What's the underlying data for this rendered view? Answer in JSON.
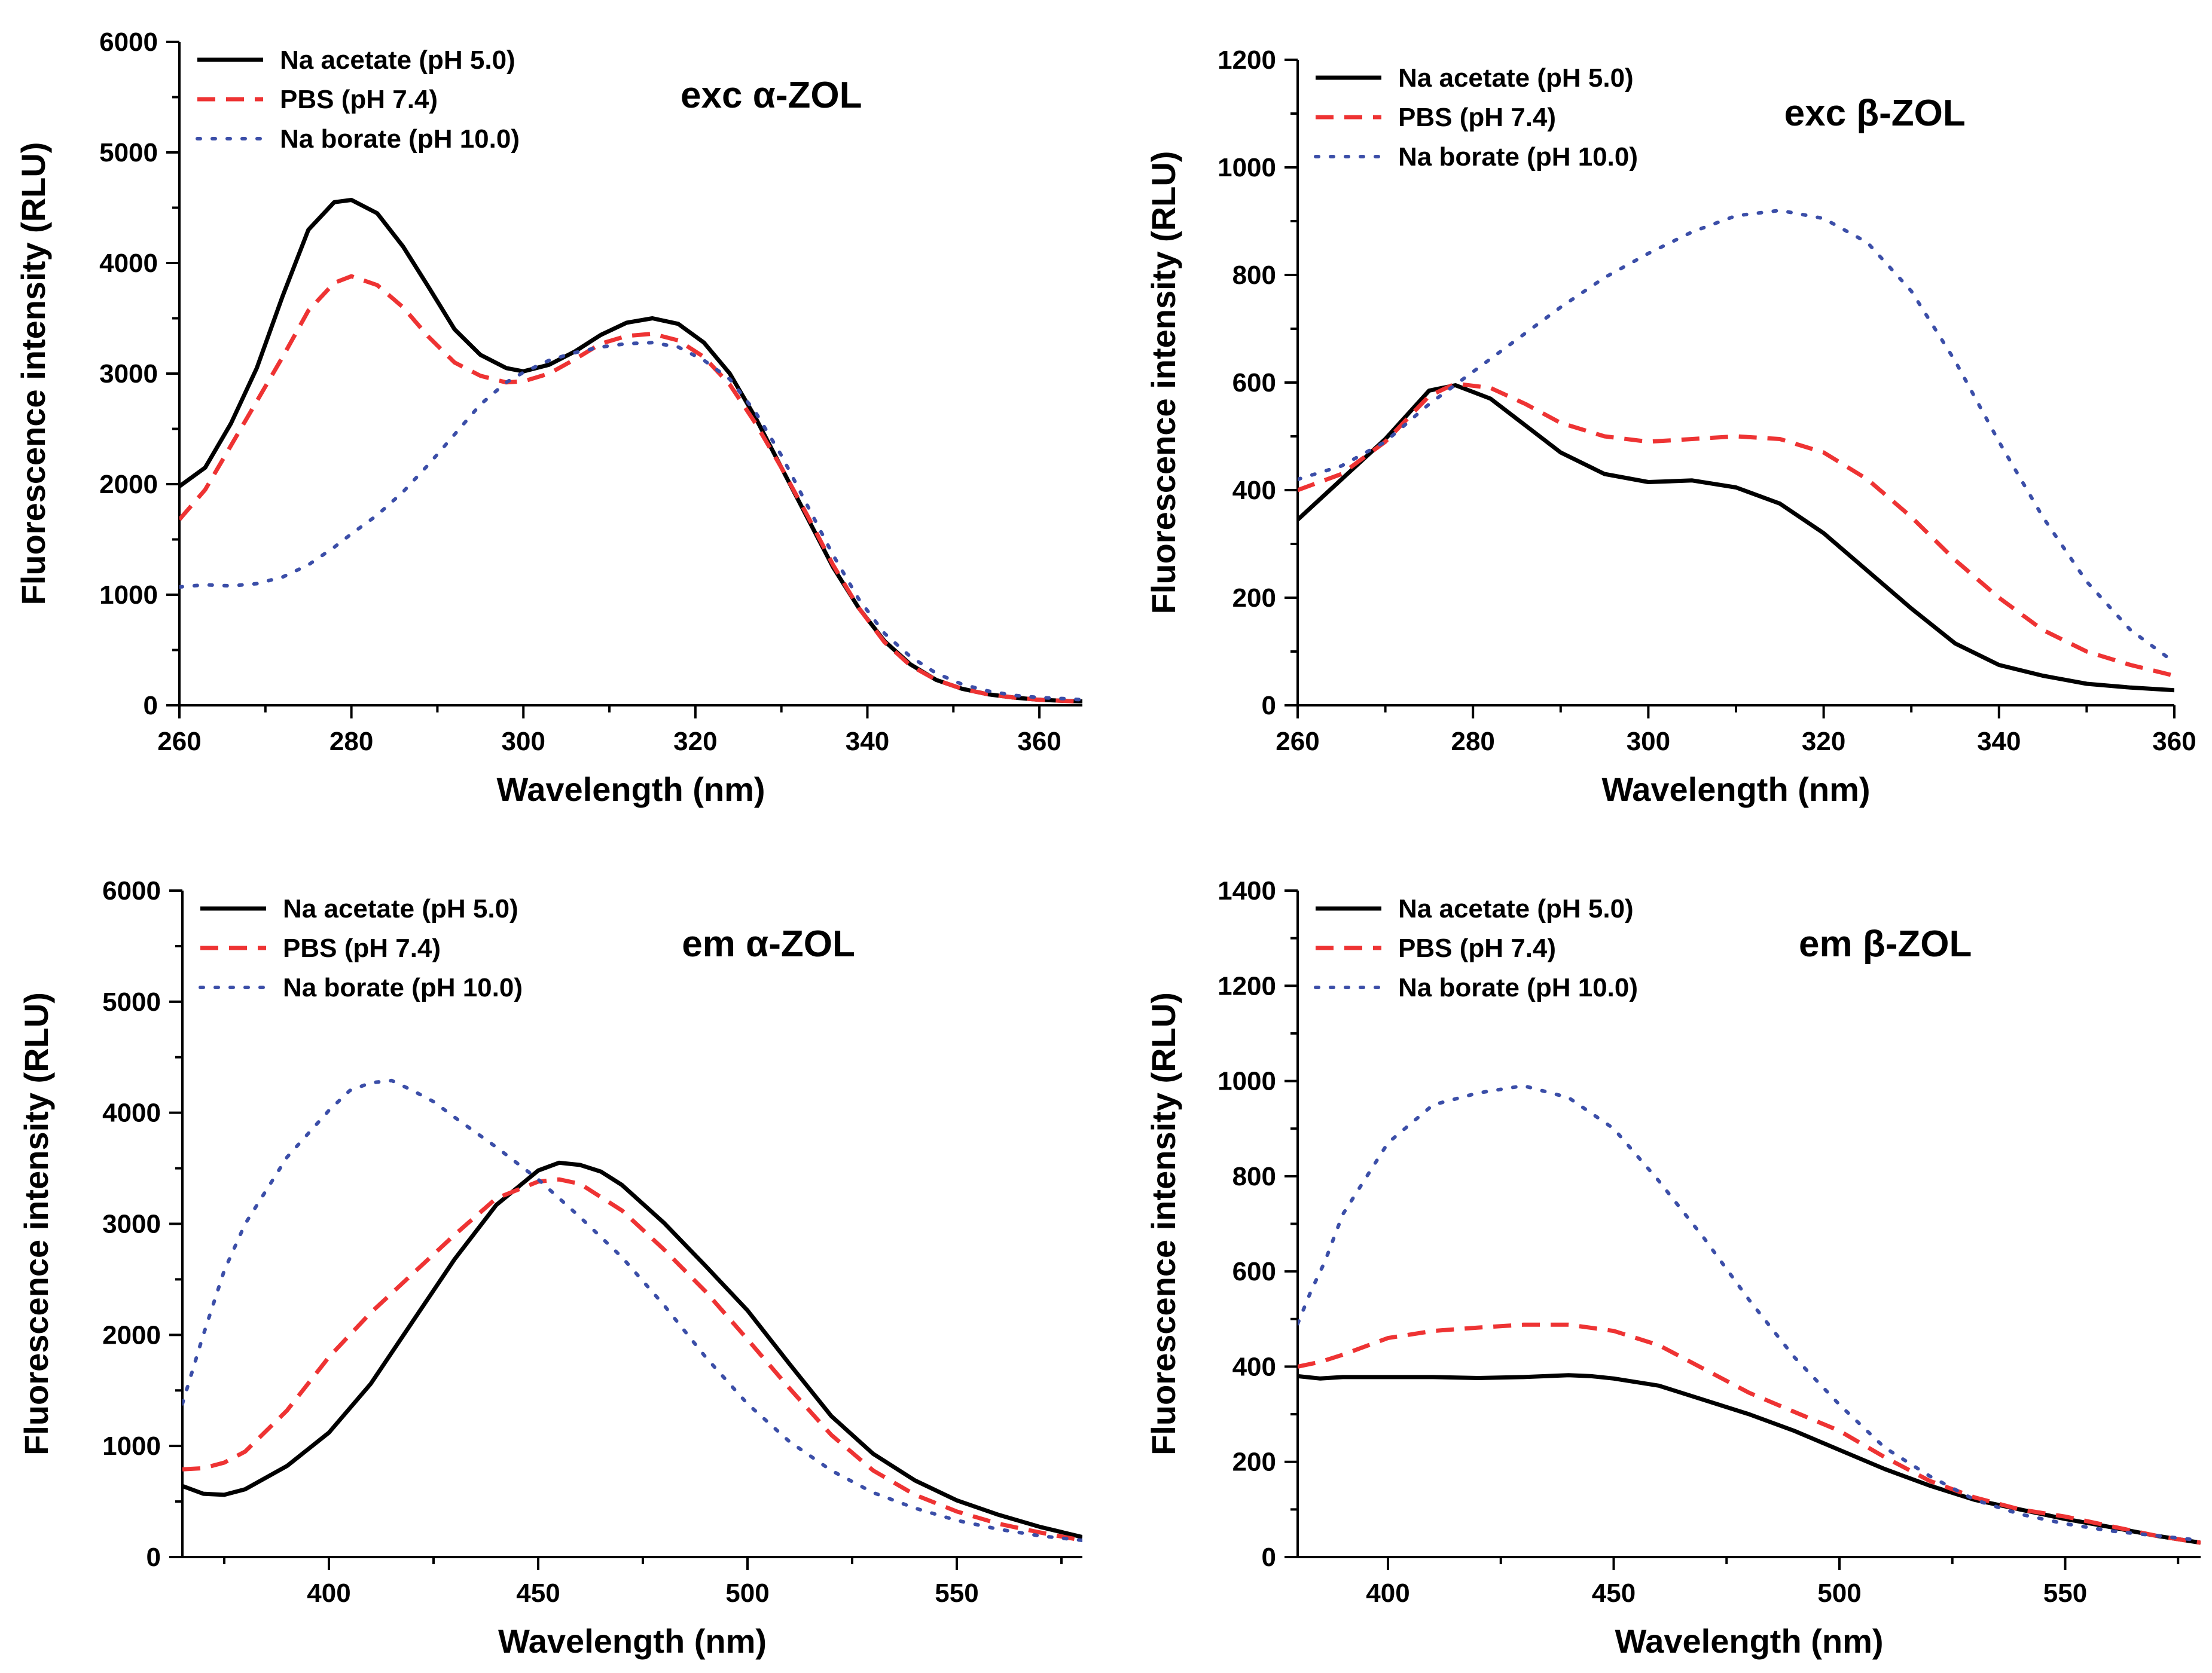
{
  "chart_data": [
    {
      "type": "line",
      "title": "exc α-ZOL",
      "xlabel": "Wavelength (nm)",
      "ylabel": "Fluorescence intensity (RLU)",
      "xlim": [
        260,
        365
      ],
      "ylim": [
        0,
        6000
      ],
      "xticks": [
        260,
        280,
        300,
        320,
        340,
        360
      ],
      "yticks": [
        0,
        1000,
        2000,
        3000,
        4000,
        5000,
        6000
      ],
      "legend_position": "top-left",
      "series": [
        {
          "name": "Na acetate (pH 5.0)",
          "color": "#000000",
          "style": "solid",
          "x": [
            260,
            263,
            266,
            269,
            272,
            275,
            278,
            280,
            283,
            286,
            289,
            292,
            295,
            298,
            300,
            303,
            306,
            309,
            312,
            315,
            318,
            321,
            324,
            327,
            330,
            333,
            336,
            339,
            342,
            345,
            348,
            351,
            354,
            357,
            360,
            363,
            365
          ],
          "y": [
            1980,
            2150,
            2550,
            3050,
            3700,
            4300,
            4550,
            4570,
            4450,
            4150,
            3780,
            3400,
            3170,
            3050,
            3020,
            3080,
            3200,
            3350,
            3460,
            3500,
            3450,
            3280,
            3000,
            2600,
            2150,
            1700,
            1250,
            880,
            580,
            370,
            230,
            150,
            100,
            70,
            50,
            40,
            35
          ]
        },
        {
          "name": "PBS (pH 7.4)",
          "color": "#ee3333",
          "style": "dashed",
          "x": [
            260,
            263,
            266,
            269,
            272,
            275,
            278,
            280,
            283,
            286,
            289,
            292,
            295,
            298,
            300,
            303,
            306,
            309,
            312,
            315,
            318,
            321,
            324,
            327,
            330,
            333,
            336,
            339,
            342,
            345,
            348,
            351,
            354,
            357,
            360,
            363,
            365
          ],
          "y": [
            1680,
            1950,
            2350,
            2750,
            3150,
            3570,
            3820,
            3880,
            3800,
            3600,
            3330,
            3100,
            2980,
            2920,
            2930,
            3000,
            3130,
            3270,
            3340,
            3360,
            3300,
            3150,
            2900,
            2550,
            2150,
            1720,
            1270,
            880,
            570,
            360,
            230,
            150,
            100,
            70,
            50,
            40,
            30
          ]
        },
        {
          "name": "Na borate (pH 10.0)",
          "color": "#3b4ea8",
          "style": "dotted",
          "x": [
            260,
            263,
            266,
            269,
            272,
            275,
            278,
            280,
            283,
            286,
            289,
            292,
            295,
            298,
            300,
            303,
            306,
            309,
            312,
            315,
            318,
            321,
            324,
            327,
            330,
            333,
            336,
            339,
            342,
            345,
            348,
            351,
            354,
            357,
            360,
            363,
            365
          ],
          "y": [
            1070,
            1090,
            1080,
            1100,
            1160,
            1270,
            1430,
            1550,
            1720,
            1930,
            2180,
            2450,
            2720,
            2920,
            3010,
            3120,
            3190,
            3240,
            3270,
            3280,
            3240,
            3120,
            2950,
            2650,
            2260,
            1810,
            1360,
            960,
            650,
            440,
            290,
            190,
            130,
            90,
            70,
            60,
            50
          ]
        }
      ]
    },
    {
      "type": "line",
      "title": "exc β-ZOL",
      "xlabel": "Wavelength (nm)",
      "ylabel": "Fluorescence intensity (RLU)",
      "xlim": [
        260,
        360
      ],
      "ylim": [
        0,
        1200
      ],
      "xticks": [
        260,
        280,
        300,
        320,
        340,
        360
      ],
      "yticks": [
        0,
        200,
        400,
        600,
        800,
        1000,
        1200
      ],
      "legend_position": "top-left",
      "series": [
        {
          "name": "Na acetate (pH 5.0)",
          "color": "#000000",
          "style": "solid",
          "x": [
            260,
            265,
            270,
            275,
            278,
            282,
            286,
            290,
            295,
            300,
            305,
            310,
            315,
            320,
            325,
            330,
            335,
            340,
            345,
            350,
            355,
            360
          ],
          "y": [
            345,
            420,
            495,
            585,
            595,
            570,
            520,
            470,
            430,
            415,
            418,
            405,
            375,
            320,
            250,
            180,
            115,
            75,
            55,
            40,
            33,
            28
          ]
        },
        {
          "name": "PBS (pH 7.4)",
          "color": "#ee3333",
          "style": "dashed",
          "x": [
            260,
            265,
            270,
            275,
            278,
            282,
            286,
            290,
            295,
            300,
            305,
            310,
            315,
            320,
            325,
            330,
            335,
            340,
            345,
            350,
            355,
            360
          ],
          "y": [
            400,
            430,
            490,
            575,
            598,
            590,
            560,
            525,
            500,
            490,
            495,
            500,
            495,
            470,
            420,
            350,
            270,
            200,
            140,
            100,
            75,
            55
          ]
        },
        {
          "name": "Na borate (pH 10.0)",
          "color": "#3b4ea8",
          "style": "dotted",
          "x": [
            260,
            265,
            270,
            275,
            280,
            285,
            290,
            295,
            300,
            305,
            310,
            315,
            320,
            325,
            330,
            335,
            340,
            345,
            350,
            355,
            360
          ],
          "y": [
            420,
            445,
            490,
            560,
            620,
            680,
            740,
            795,
            840,
            880,
            910,
            920,
            905,
            860,
            770,
            640,
            490,
            350,
            230,
            140,
            80
          ]
        }
      ]
    },
    {
      "type": "line",
      "title": "em α-ZOL",
      "xlabel": "Wavelength (nm)",
      "ylabel": "Fluorescence intensity (RLU)",
      "xlim": [
        365,
        580
      ],
      "ylim": [
        0,
        6000
      ],
      "xticks": [
        400,
        450,
        500,
        550
      ],
      "yticks": [
        0,
        1000,
        2000,
        3000,
        4000,
        5000,
        6000
      ],
      "legend_position": "top-left",
      "series": [
        {
          "name": "Na acetate (pH 5.0)",
          "color": "#000000",
          "style": "solid",
          "x": [
            365,
            370,
            375,
            380,
            390,
            400,
            410,
            420,
            430,
            440,
            450,
            455,
            460,
            465,
            470,
            480,
            490,
            500,
            510,
            520,
            530,
            540,
            550,
            560,
            570,
            580
          ],
          "y": [
            640,
            570,
            560,
            610,
            820,
            1120,
            1560,
            2120,
            2680,
            3170,
            3480,
            3550,
            3530,
            3470,
            3350,
            3010,
            2620,
            2220,
            1740,
            1270,
            930,
            690,
            510,
            380,
            270,
            180
          ]
        },
        {
          "name": "PBS (pH 7.4)",
          "color": "#ee3333",
          "style": "dashed",
          "x": [
            365,
            370,
            375,
            380,
            390,
            400,
            410,
            420,
            430,
            440,
            450,
            455,
            460,
            470,
            480,
            490,
            500,
            510,
            520,
            530,
            540,
            550,
            560,
            570,
            580
          ],
          "y": [
            790,
            800,
            850,
            950,
            1320,
            1800,
            2200,
            2550,
            2900,
            3230,
            3380,
            3400,
            3360,
            3120,
            2770,
            2390,
            1960,
            1520,
            1100,
            780,
            560,
            410,
            300,
            220,
            150
          ]
        },
        {
          "name": "Na borate (pH 10.0)",
          "color": "#3b4ea8",
          "style": "dotted",
          "x": [
            365,
            370,
            375,
            380,
            390,
            400,
            405,
            410,
            415,
            420,
            425,
            430,
            440,
            450,
            460,
            470,
            480,
            490,
            500,
            510,
            520,
            530,
            540,
            550,
            560,
            570,
            580
          ],
          "y": [
            1380,
            2000,
            2580,
            3000,
            3600,
            4020,
            4200,
            4270,
            4290,
            4200,
            4100,
            3960,
            3690,
            3400,
            3060,
            2700,
            2270,
            1800,
            1380,
            1040,
            780,
            580,
            440,
            330,
            250,
            190,
            150
          ]
        }
      ]
    },
    {
      "type": "line",
      "title": "em β-ZOL",
      "xlabel": "Wavelength (nm)",
      "ylabel": "Fluorescence intensity (RLU)",
      "xlim": [
        380,
        580
      ],
      "ylim": [
        0,
        1400
      ],
      "xticks": [
        400,
        450,
        500,
        550
      ],
      "yticks": [
        0,
        200,
        400,
        600,
        800,
        1000,
        1200,
        1400
      ],
      "legend_position": "top-left",
      "series": [
        {
          "name": "Na acetate (pH 5.0)",
          "color": "#000000",
          "style": "solid",
          "x": [
            380,
            385,
            390,
            400,
            410,
            420,
            430,
            440,
            445,
            450,
            460,
            470,
            480,
            490,
            500,
            510,
            520,
            530,
            540,
            550,
            560,
            570,
            580
          ],
          "y": [
            380,
            375,
            378,
            378,
            378,
            376,
            378,
            382,
            380,
            375,
            360,
            330,
            300,
            265,
            225,
            185,
            150,
            120,
            100,
            80,
            63,
            45,
            30
          ]
        },
        {
          "name": "PBS (pH 7.4)",
          "color": "#ee3333",
          "style": "dashed",
          "x": [
            380,
            385,
            390,
            400,
            410,
            420,
            430,
            440,
            450,
            460,
            470,
            480,
            490,
            500,
            510,
            520,
            530,
            540,
            550,
            560,
            570,
            580
          ],
          "y": [
            400,
            410,
            425,
            460,
            475,
            482,
            488,
            488,
            475,
            445,
            395,
            345,
            305,
            265,
            210,
            160,
            125,
            100,
            85,
            65,
            45,
            30
          ]
        },
        {
          "name": "Na borate (pH 10.0)",
          "color": "#3b4ea8",
          "style": "dotted",
          "x": [
            380,
            383,
            386,
            390,
            400,
            410,
            420,
            430,
            440,
            450,
            460,
            470,
            480,
            490,
            500,
            510,
            520,
            530,
            540,
            550,
            560,
            570,
            580
          ],
          "y": [
            490,
            560,
            620,
            720,
            870,
            950,
            975,
            990,
            965,
            900,
            790,
            670,
            540,
            420,
            320,
            230,
            170,
            120,
            90,
            70,
            55,
            45,
            35
          ]
        }
      ]
    }
  ]
}
